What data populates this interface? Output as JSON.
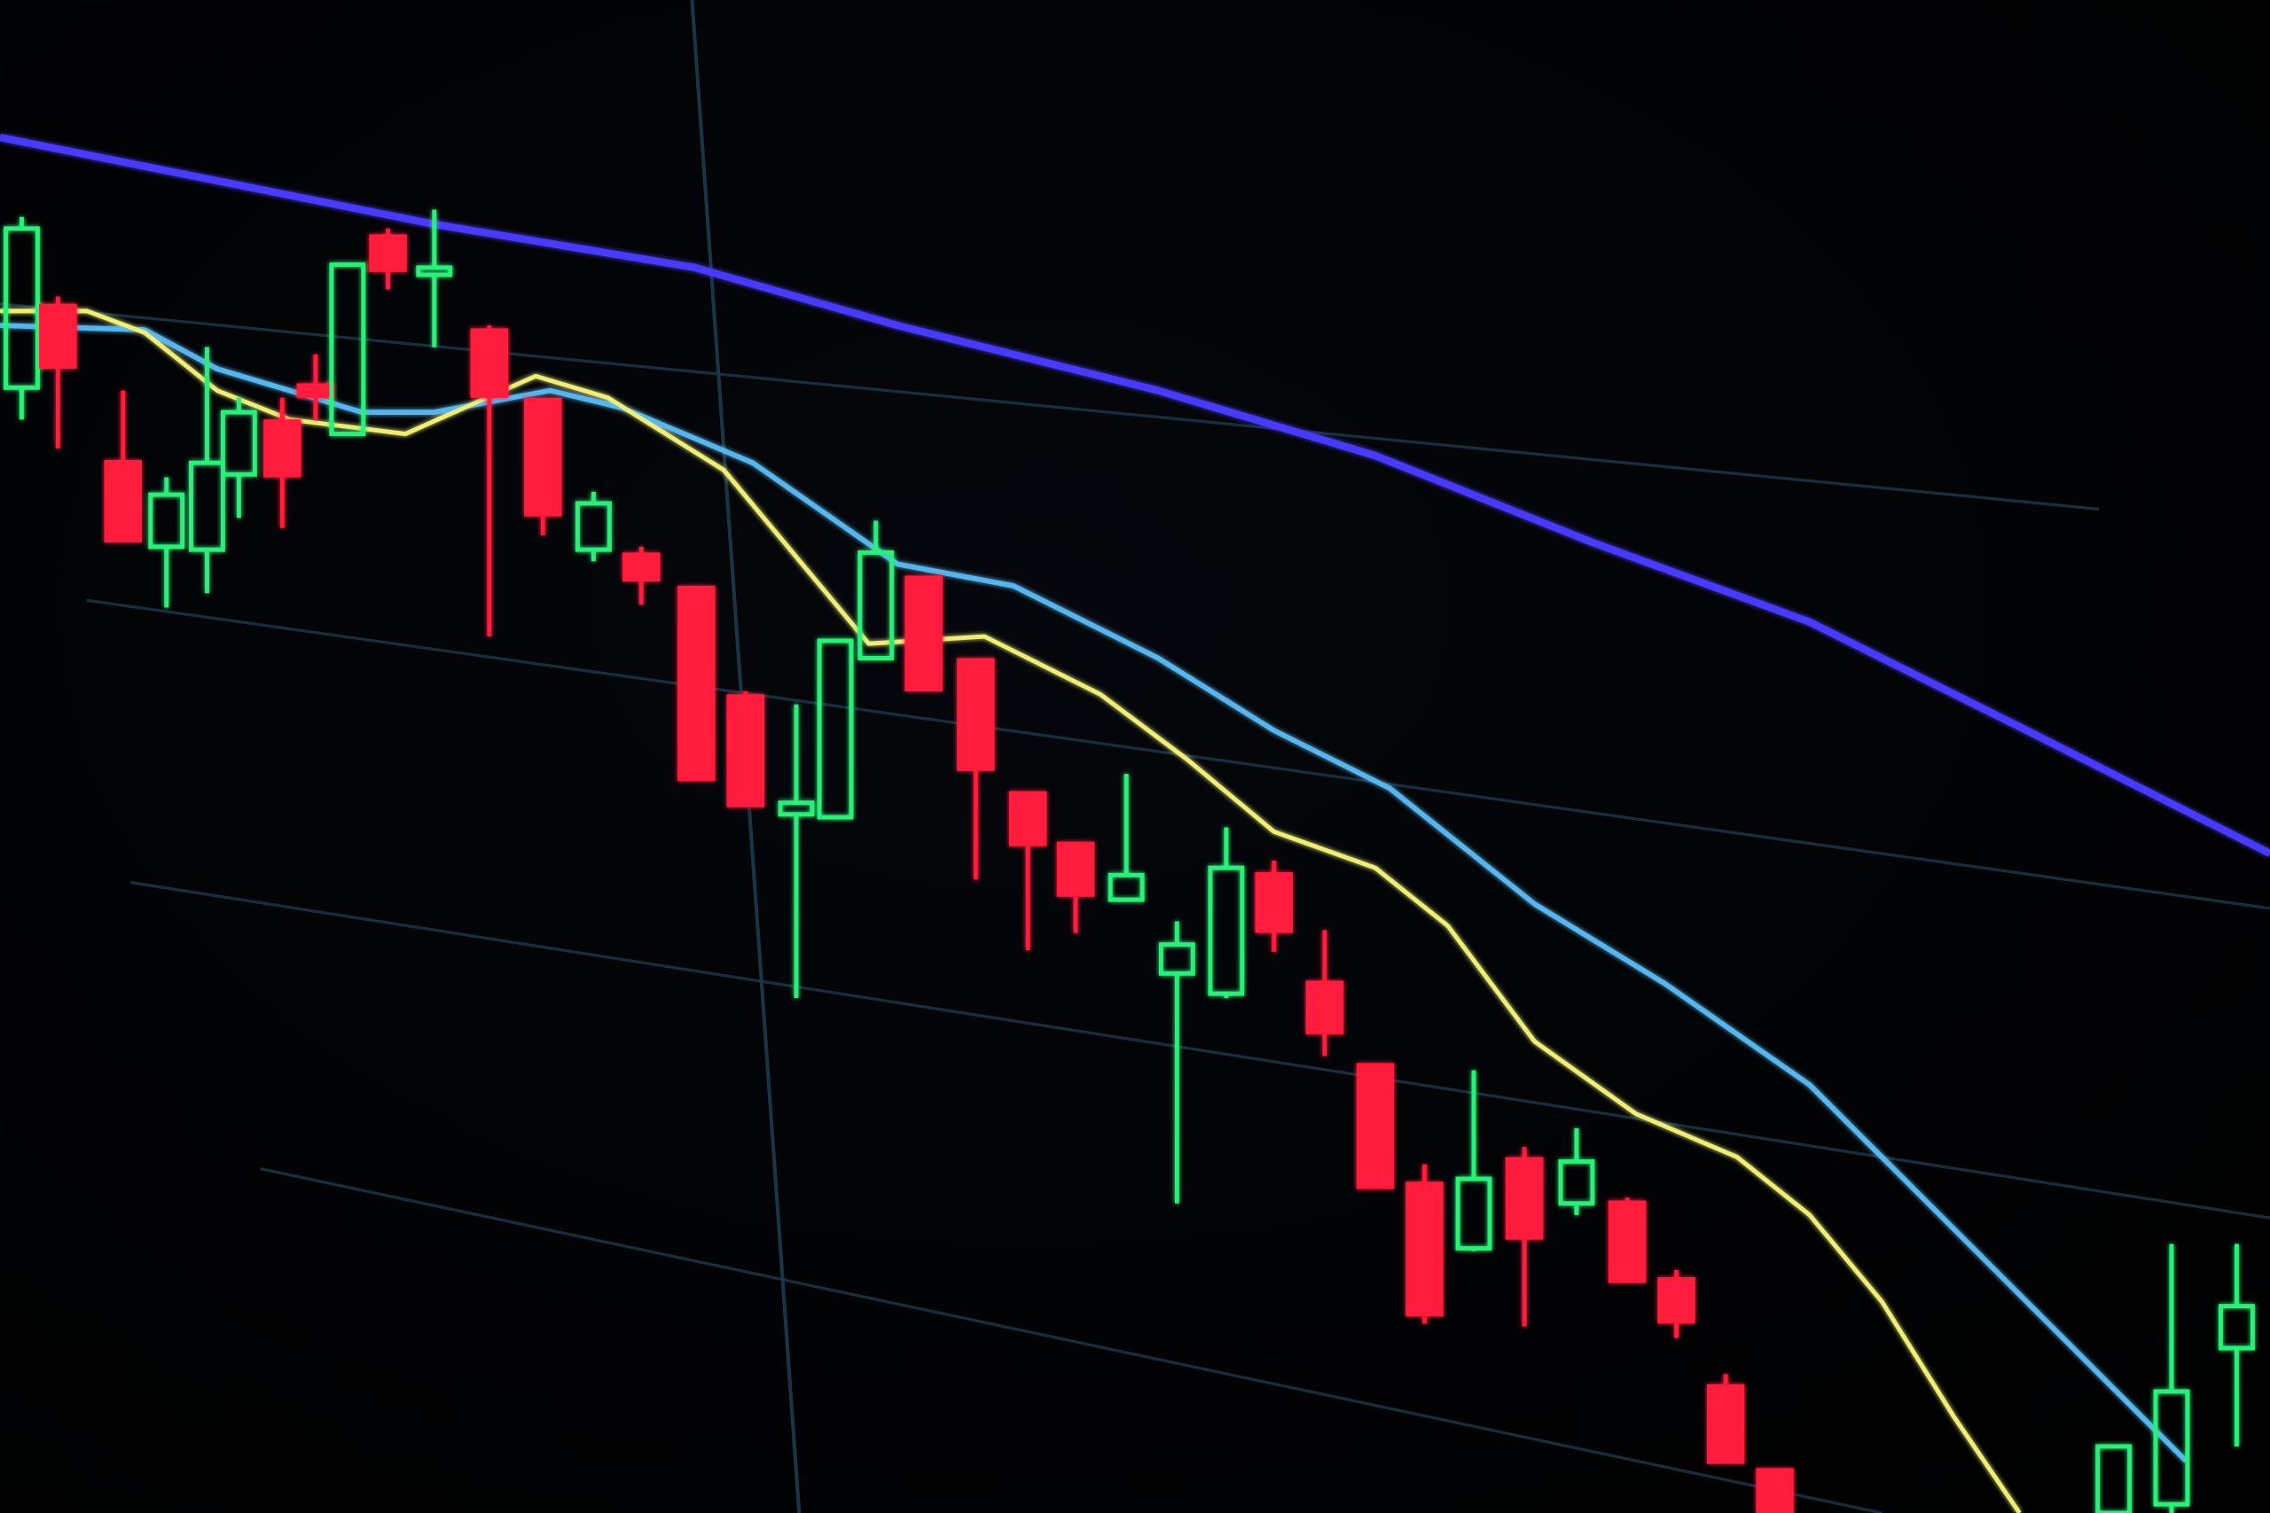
{
  "scene": {
    "kind": "candlestick",
    "colors": {
      "background": "#000000",
      "bearish_candle": "#ff1a3c",
      "bullish_candle": "#2cf07a",
      "slow_average": "#4a3cff",
      "mid_average": "#5ab8f0",
      "fast_average": "#f2f27a",
      "grid": "#1c3a4a"
    }
  }
}
